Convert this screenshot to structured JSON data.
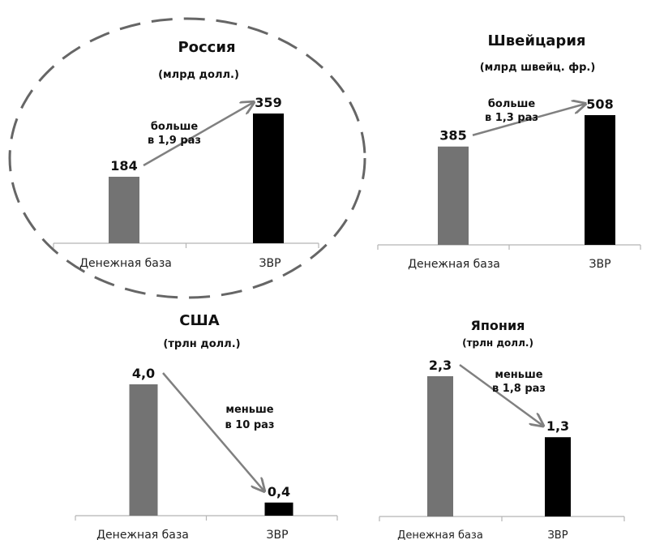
{
  "chart_data": [
    {
      "type": "bar",
      "title": "Россия",
      "subtitle": "(млрд  долл.)",
      "categories": [
        "Денежная база",
        "ЗВР"
      ],
      "values": [
        184,
        359
      ],
      "value_labels": [
        "184",
        "359"
      ],
      "annotation": [
        "больше",
        "в 1,9 раз"
      ],
      "highlighted": true,
      "colors": [
        "#737373",
        "#000000"
      ]
    },
    {
      "type": "bar",
      "title": "Швейцария",
      "subtitle": "(млрд  швейц. фр.)",
      "categories": [
        "Денежная база",
        "ЗВР"
      ],
      "values": [
        385,
        508
      ],
      "value_labels": [
        "385",
        "508"
      ],
      "annotation": [
        "больше",
        "в 1,3 раз"
      ],
      "colors": [
        "#737373",
        "#000000"
      ]
    },
    {
      "type": "bar",
      "title": "США",
      "subtitle": "(трлн  долл.)",
      "categories": [
        "Денежная база",
        "ЗВР"
      ],
      "values": [
        4.0,
        0.4
      ],
      "value_labels": [
        "4,0",
        "0,4"
      ],
      "annotation": [
        "меньше",
        "в 10 раз"
      ],
      "colors": [
        "#737373",
        "#000000"
      ]
    },
    {
      "type": "bar",
      "title": "Япония",
      "subtitle": "(трлн  долл.)",
      "categories": [
        "Денежная база",
        "ЗВР"
      ],
      "values": [
        2.3,
        1.3
      ],
      "value_labels": [
        "2,3",
        "1,3"
      ],
      "annotation": [
        "меньше",
        "в 1,8 раз"
      ],
      "colors": [
        "#737373",
        "#000000"
      ]
    }
  ]
}
